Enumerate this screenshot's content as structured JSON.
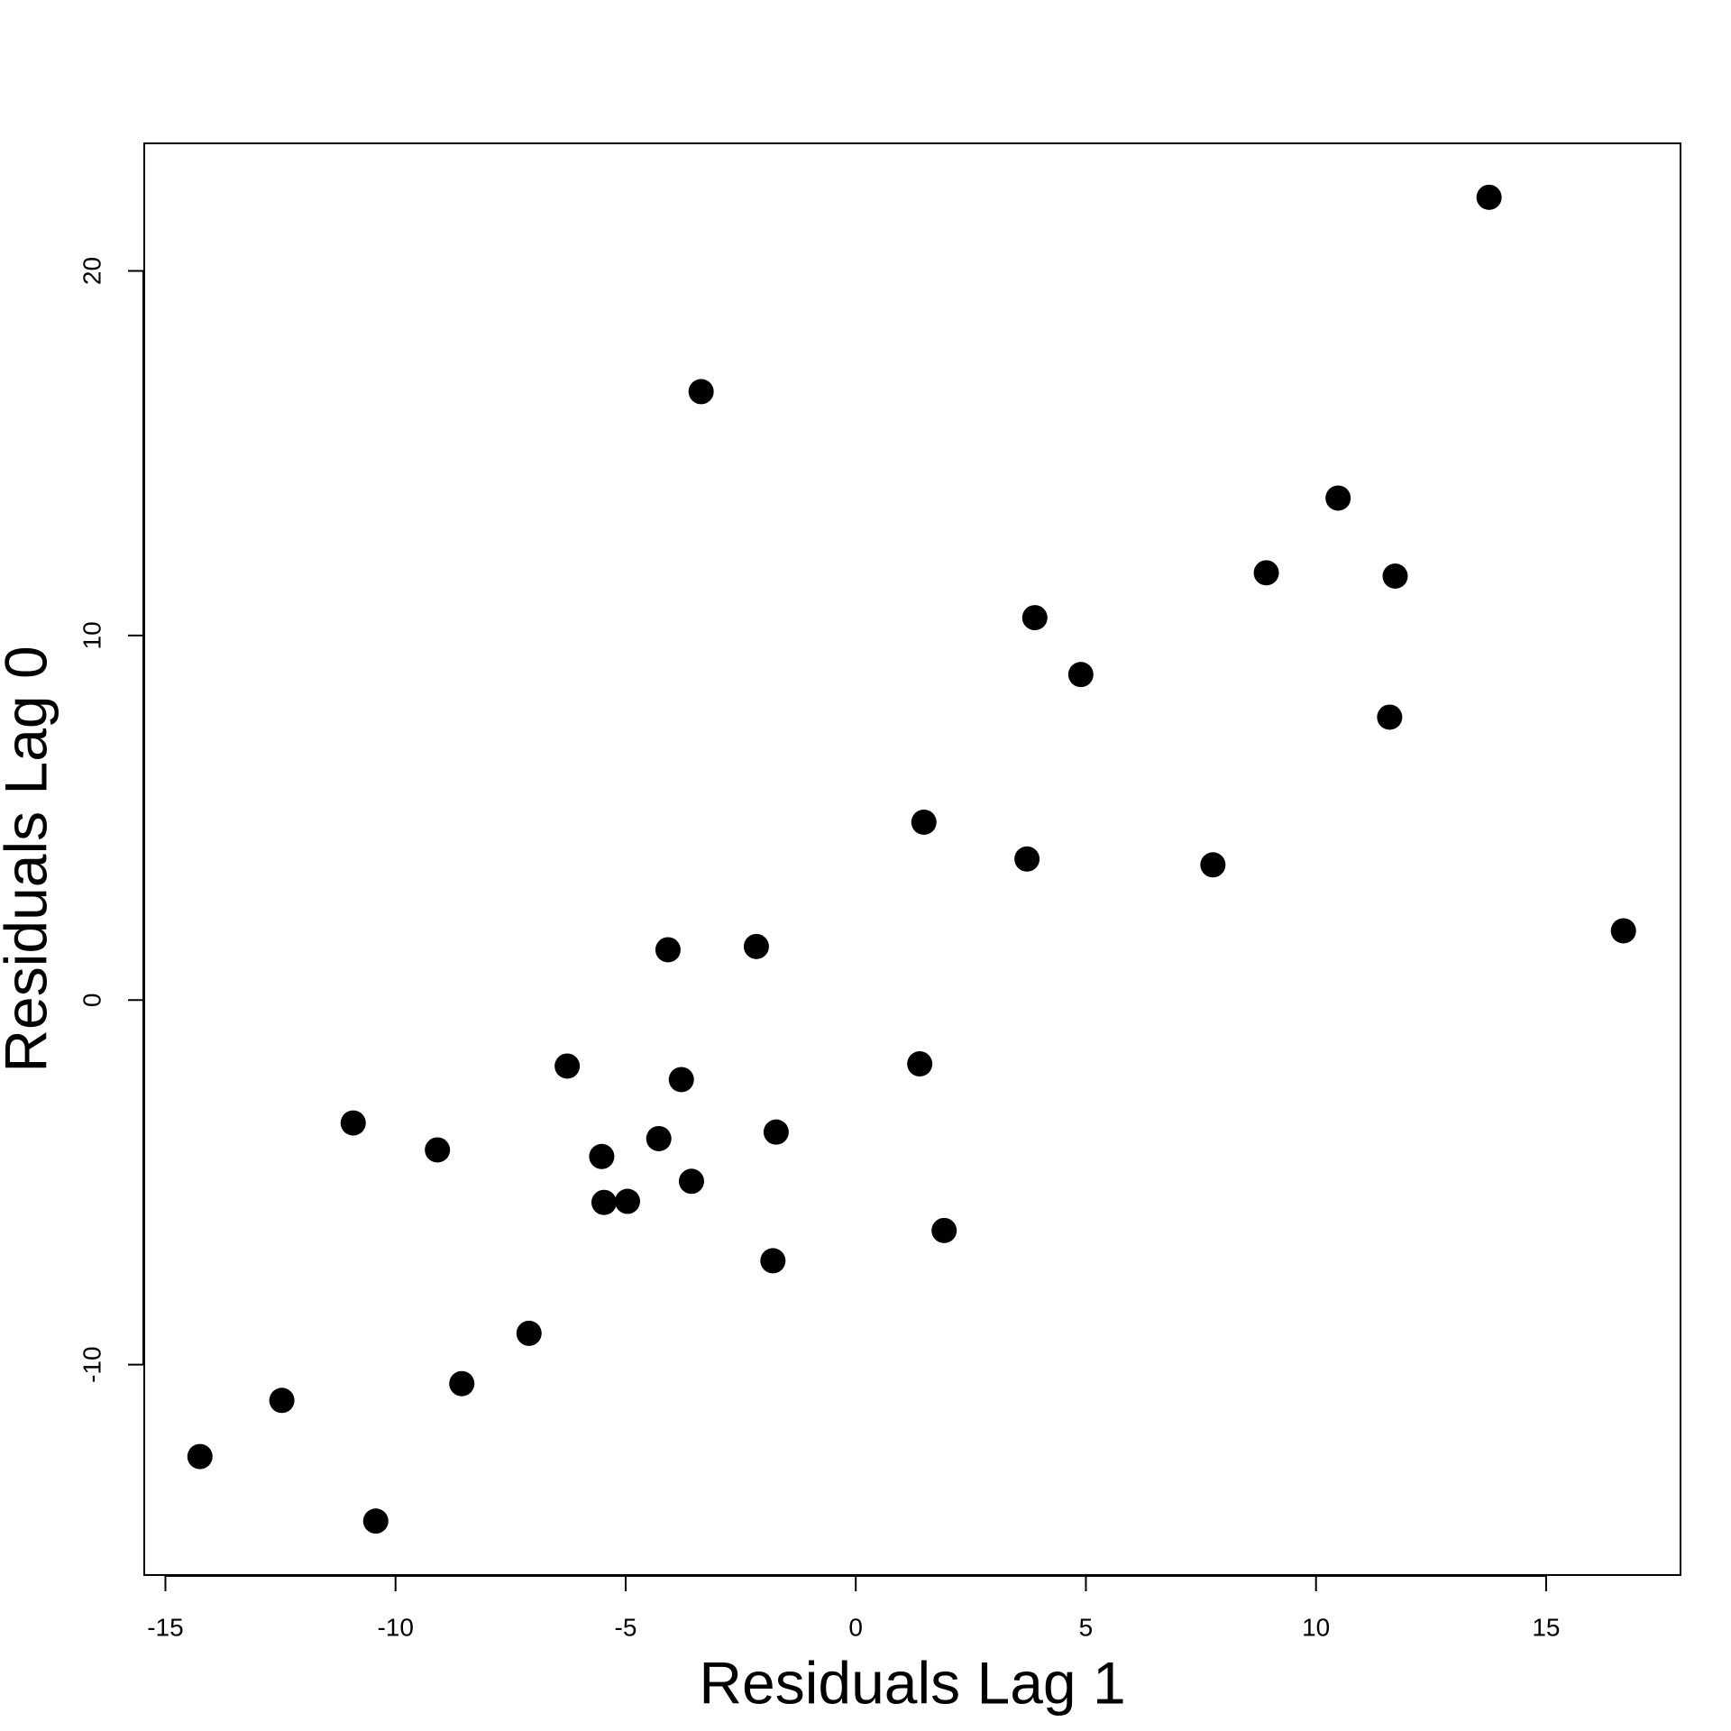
{
  "chart_data": {
    "type": "scatter",
    "x_label": "Residuals Lag 1",
    "y_label": "Residuals Lag 0",
    "x": [
      13.76,
      -3.36,
      10.48,
      8.92,
      11.72,
      3.89,
      4.89,
      11.6,
      1.48,
      3.72,
      7.76,
      16.68,
      -4.08,
      -2.16,
      -6.27,
      1.39,
      -3.79,
      -10.92,
      -9.09,
      -4.28,
      -1.73,
      -5.52,
      -3.57,
      -5.47,
      -4.96,
      1.92,
      -1.8,
      -7.1,
      -8.56,
      -12.47,
      -14.25,
      -10.43
    ],
    "values": [
      22.02,
      16.69,
      13.77,
      11.72,
      11.63,
      10.49,
      8.93,
      7.76,
      4.88,
      3.87,
      3.71,
      1.9,
      1.38,
      1.47,
      -1.81,
      -1.75,
      -2.18,
      -3.37,
      -4.11,
      -3.8,
      -3.62,
      -4.29,
      -4.97,
      -5.55,
      -5.52,
      -6.32,
      -7.15,
      -9.14,
      -10.52,
      -10.98,
      -12.52,
      -14.29
    ],
    "color": "#000000",
    "xlim": [
      -15.46,
      17.92
    ],
    "ylim": [
      -15.77,
      23.5
    ],
    "xticks": [
      -15,
      -10,
      -5,
      0,
      5,
      10,
      15
    ],
    "yticks": [
      -10,
      0,
      10,
      20
    ]
  }
}
